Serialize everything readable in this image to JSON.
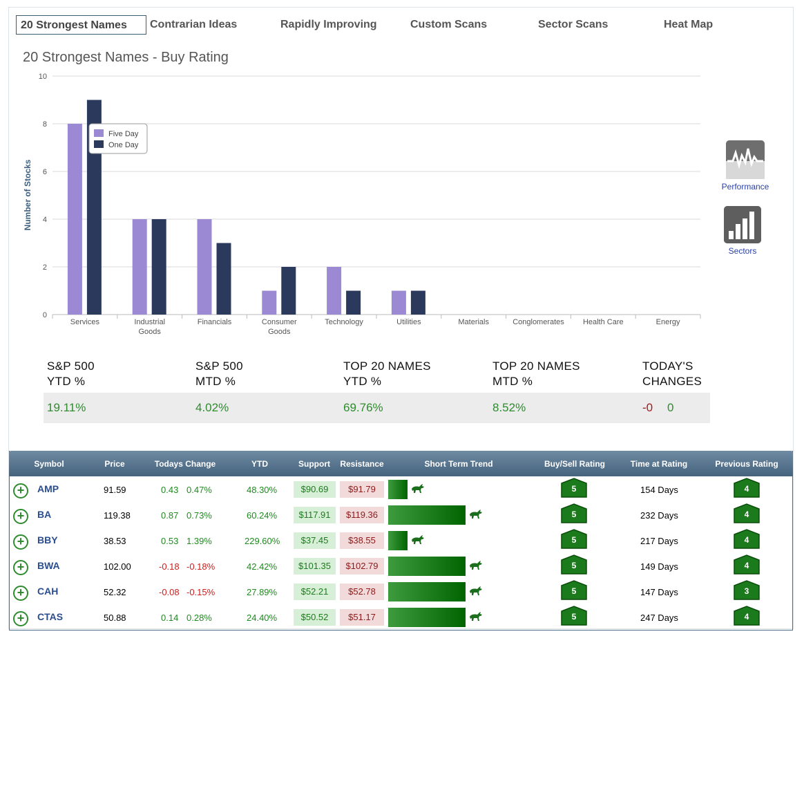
{
  "tabs": [
    {
      "label": "20 Strongest Names",
      "active": true
    },
    {
      "label": "Contrarian Ideas"
    },
    {
      "label": "Rapidly Improving"
    },
    {
      "label": "Custom Scans"
    },
    {
      "label": "Sector Scans"
    },
    {
      "label": "Heat Map"
    }
  ],
  "chart_data": {
    "type": "bar",
    "title": "20 Strongest Names - Buy Rating",
    "ylabel": "Number of Stocks",
    "xlabel": "",
    "ylim": [
      0,
      10
    ],
    "yticks": [
      0,
      2,
      4,
      6,
      8,
      10
    ],
    "categories": [
      "Services",
      "Industrial Goods",
      "Financials",
      "Consumer Goods",
      "Technology",
      "Utilities",
      "Materials",
      "Conglomerates",
      "Health Care",
      "Energy"
    ],
    "series": [
      {
        "name": "Five Day",
        "color": "#9b89d4",
        "values": [
          8,
          4,
          4,
          1,
          2,
          1,
          0,
          0,
          0,
          0
        ]
      },
      {
        "name": "One Day",
        "color": "#2b3a5c",
        "values": [
          9,
          4,
          3,
          2,
          1,
          1,
          0,
          0,
          0,
          0
        ]
      }
    ],
    "grid": true,
    "legend": "top-left"
  },
  "side_buttons": {
    "performance": {
      "label": "Performance",
      "icon": "performance-chart-icon"
    },
    "sectors": {
      "label": "Sectors",
      "icon": "bar-chart-icon"
    }
  },
  "summary": [
    {
      "h1": "S&P 500",
      "h2": "YTD %",
      "value": "19.11%"
    },
    {
      "h1": "S&P 500",
      "h2": "MTD %",
      "value": "4.02%"
    },
    {
      "h1": "TOP 20 NAMES",
      "h2": "YTD %",
      "value": "69.76%"
    },
    {
      "h1": "TOP 20 NAMES",
      "h2": "MTD %",
      "value": "8.52%"
    },
    {
      "h1": "TODAY'S",
      "h2": "CHANGES",
      "value_neg": "-0",
      "value_pos": "0"
    }
  ],
  "table": {
    "headers": [
      "Symbol",
      "Price",
      "Todays Change",
      "YTD",
      "Support",
      "Resistance",
      "Short Term Trend",
      "Buy/Sell Rating",
      "Time at Rating",
      "Previous Rating"
    ],
    "rows": [
      {
        "symbol": "AMP",
        "price": "91.59",
        "chg": "0.43",
        "chg_pct": "0.47%",
        "ytd": "48.30%",
        "support": "$90.69",
        "resistance": "$91.79",
        "trend": 0.25,
        "rating": "5",
        "time": "154 Days",
        "prev": "4"
      },
      {
        "symbol": "BA",
        "price": "119.38",
        "chg": "0.87",
        "chg_pct": "0.73%",
        "ytd": "60.24%",
        "support": "$117.91",
        "resistance": "$119.36",
        "trend": 1.0,
        "rating": "5",
        "time": "232 Days",
        "prev": "4"
      },
      {
        "symbol": "BBY",
        "price": "38.53",
        "chg": "0.53",
        "chg_pct": "1.39%",
        "ytd": "229.60%",
        "support": "$37.45",
        "resistance": "$38.55",
        "trend": 0.25,
        "rating": "5",
        "time": "217 Days",
        "prev": "4"
      },
      {
        "symbol": "BWA",
        "price": "102.00",
        "chg": "-0.18",
        "chg_pct": "-0.18%",
        "ytd": "42.42%",
        "support": "$101.35",
        "resistance": "$102.79",
        "trend": 1.0,
        "rating": "5",
        "time": "149 Days",
        "prev": "4"
      },
      {
        "symbol": "CAH",
        "price": "52.32",
        "chg": "-0.08",
        "chg_pct": "-0.15%",
        "ytd": "27.89%",
        "support": "$52.21",
        "resistance": "$52.78",
        "trend": 1.0,
        "rating": "5",
        "time": "147 Days",
        "prev": "3"
      },
      {
        "symbol": "CTAS",
        "price": "50.88",
        "chg": "0.14",
        "chg_pct": "0.28%",
        "ytd": "24.40%",
        "support": "$50.52",
        "resistance": "$51.17",
        "trend": 1.0,
        "rating": "5",
        "time": "247 Days",
        "prev": "4"
      }
    ]
  }
}
